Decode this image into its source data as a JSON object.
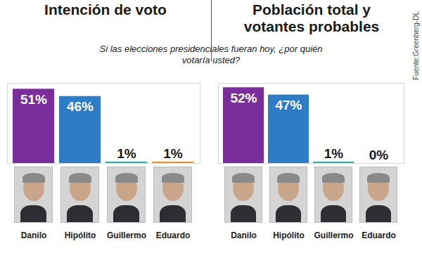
{
  "chart_data": [
    {
      "type": "bar",
      "title": "Intención de voto",
      "subtitle": "Si las elecciones presidenciales fueran hoy, ¿por quién votaría usted?",
      "categories": [
        "Danilo",
        "Hipólito",
        "Guillermo",
        "Eduardo"
      ],
      "values": [
        51,
        46,
        1,
        1
      ],
      "value_labels": [
        "51%",
        "46%",
        "1%",
        "1%"
      ],
      "colors": [
        "#7a2e9c",
        "#2f7cc6",
        "#36a9a9",
        "#e8952e"
      ],
      "ylim": [
        0,
        55
      ],
      "data_labels": true,
      "tick_labels": "x"
    },
    {
      "type": "bar",
      "title": "Población total y votantes probables",
      "annotations": [
        "Fuente:Greenberg-DL"
      ],
      "categories": [
        "Danilo",
        "Hipólito",
        "Guillermo",
        "Eduardo"
      ],
      "values": [
        52,
        47,
        1,
        0
      ],
      "value_labels": [
        "52%",
        "47%",
        "1%",
        "0%"
      ],
      "colors": [
        "#7a2e9c",
        "#2f7cc6",
        "#36a9a9",
        "#e8952e"
      ],
      "ylim": [
        0,
        55
      ],
      "data_labels": true,
      "tick_labels": "x"
    }
  ]
}
